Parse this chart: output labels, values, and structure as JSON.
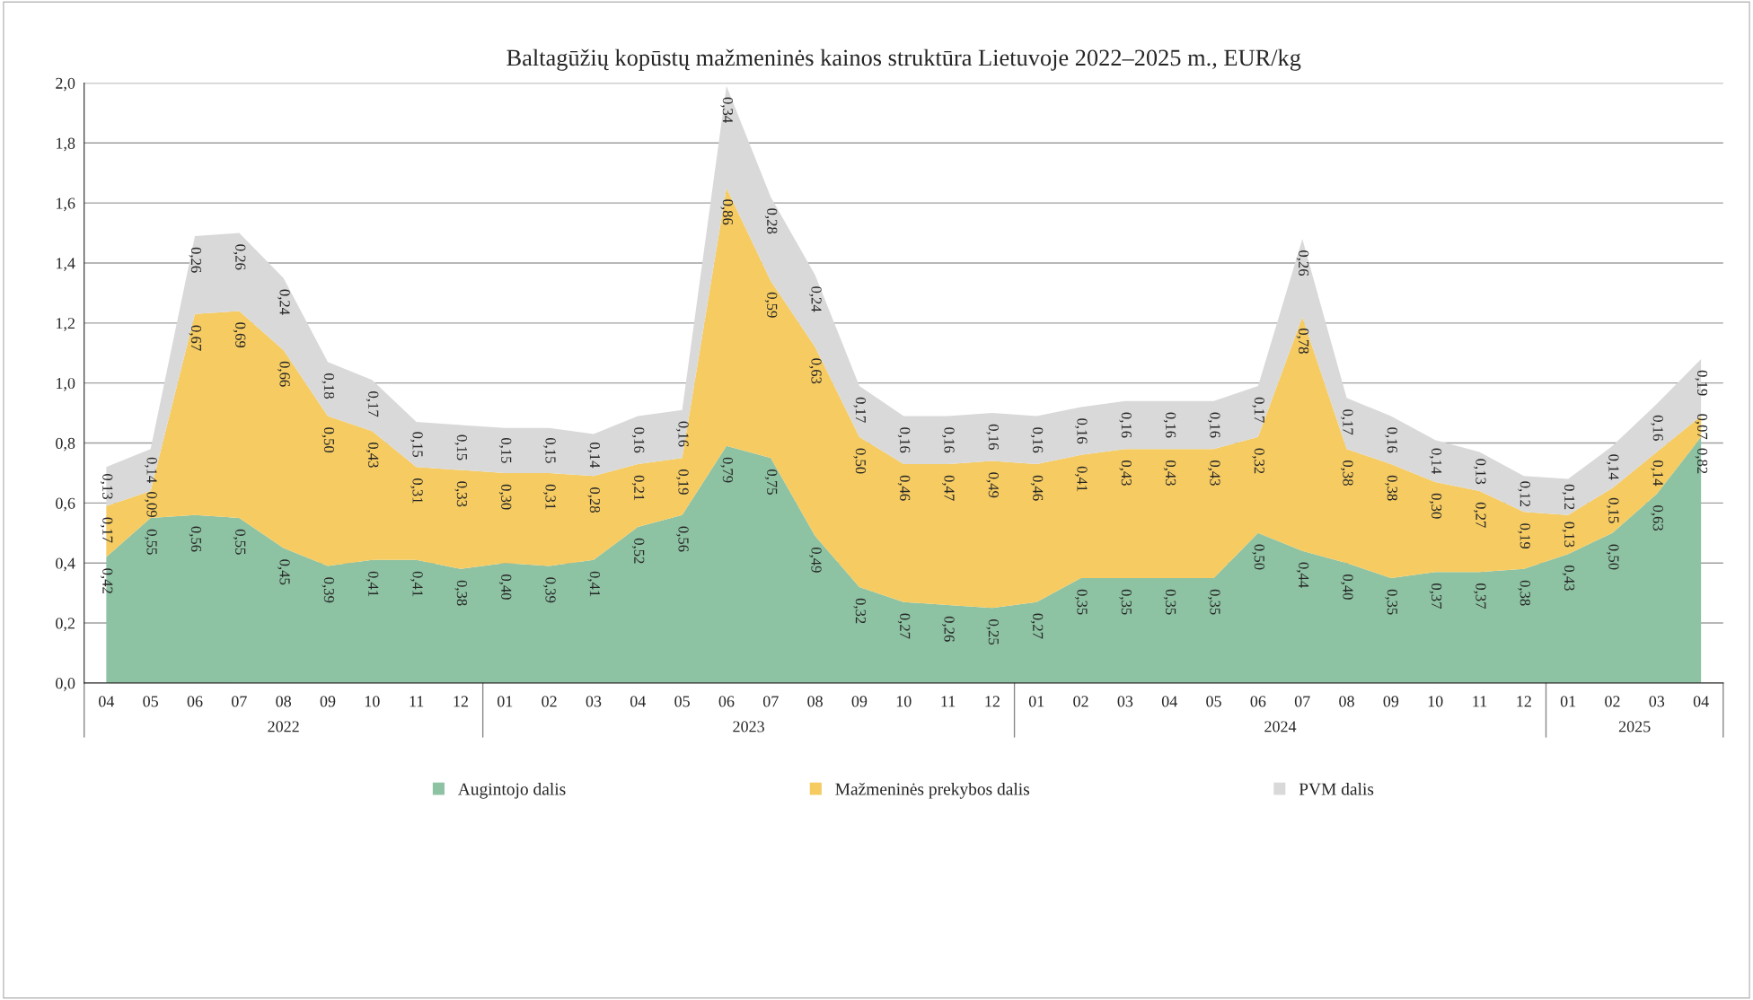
{
  "chart_data": {
    "type": "area",
    "stacked": true,
    "title": "Baltagūžių kopūstų mažmeninės kainos struktūra Lietuvoje 2022–2025 m., EUR/kg",
    "categories": [
      "04",
      "05",
      "06",
      "07",
      "08",
      "09",
      "10",
      "11",
      "12",
      "01",
      "02",
      "03",
      "04",
      "05",
      "06",
      "07",
      "08",
      "09",
      "10",
      "11",
      "12",
      "01",
      "02",
      "03",
      "04",
      "05",
      "06",
      "07",
      "08",
      "09",
      "10",
      "11",
      "12",
      "01",
      "02",
      "03",
      "04"
    ],
    "annotations": [
      "2022",
      "2023",
      "2024",
      "2025"
    ],
    "ylim": [
      0,
      2
    ],
    "yticks": [
      {
        "value": 0,
        "label": "0,0"
      },
      {
        "value": 0.2,
        "label": "0,2"
      },
      {
        "value": 0.4,
        "label": "0,4"
      },
      {
        "value": 0.6,
        "label": "0,6"
      },
      {
        "value": 0.8,
        "label": "0,8"
      },
      {
        "value": 1.0,
        "label": "1,0"
      },
      {
        "value": 1.2,
        "label": "1,2"
      },
      {
        "value": 1.4,
        "label": "1,4"
      },
      {
        "value": 1.6,
        "label": "1,6"
      },
      {
        "value": 1.8,
        "label": "1,8"
      },
      {
        "value": 2.0,
        "label": "2,0"
      }
    ],
    "grid": "y",
    "legend": "bottom",
    "series": [
      {
        "name": "Augintojo dalis",
        "color": "#8dc2a3",
        "values": [
          0.42,
          0.55,
          0.56,
          0.55,
          0.45,
          0.39,
          0.41,
          0.41,
          0.38,
          0.4,
          0.39,
          0.41,
          0.52,
          0.56,
          0.79,
          0.75,
          0.49,
          0.32,
          0.27,
          0.26,
          0.25,
          0.27,
          0.35,
          0.35,
          0.35,
          0.35,
          0.5,
          0.44,
          0.4,
          0.35,
          0.37,
          0.37,
          0.38,
          0.43,
          0.5,
          0.63,
          0.82
        ],
        "value_labels": [
          "0,42",
          "0,55",
          "0,56",
          "0,55",
          "0,45",
          "0,39",
          "0,41",
          "0,41",
          "0,38",
          "0,40",
          "0,39",
          "0,41",
          "0,52",
          "0,56",
          "0,79",
          "0,75",
          "0,49",
          "0,32",
          "0,27",
          "0,26",
          "0,25",
          "0,27",
          "0,35",
          "0,35",
          "0,35",
          "0,35",
          "0,50",
          "0,44",
          "0,40",
          "0,35",
          "0,37",
          "0,37",
          "0,38",
          "0,43",
          "0,50",
          "0,63",
          "0,82"
        ]
      },
      {
        "name": "Mažmeninės prekybos dalis",
        "color": "#f5cb62",
        "values": [
          0.17,
          0.09,
          0.67,
          0.69,
          0.66,
          0.5,
          0.43,
          0.31,
          0.33,
          0.3,
          0.31,
          0.28,
          0.21,
          0.19,
          0.86,
          0.59,
          0.63,
          0.5,
          0.46,
          0.47,
          0.49,
          0.46,
          0.41,
          0.43,
          0.43,
          0.43,
          0.32,
          0.78,
          0.38,
          0.38,
          0.3,
          0.27,
          0.19,
          0.13,
          0.15,
          0.14,
          0.07
        ],
        "value_labels": [
          "0,17",
          "0,09",
          "0,67",
          "0,69",
          "0,66",
          "0,50",
          "0,43",
          "0,31",
          "0,33",
          "0,30",
          "0,31",
          "0,28",
          "0,21",
          "0,19",
          "0,86",
          "0,59",
          "0,63",
          "0,50",
          "0,46",
          "0,47",
          "0,49",
          "0,46",
          "0,41",
          "0,43",
          "0,43",
          "0,43",
          "0,32",
          "0,78",
          "0,38",
          "0,38",
          "0,30",
          "0,27",
          "0,19",
          "0,13",
          "0,15",
          "0,14",
          "0,07"
        ]
      },
      {
        "name": "PVM dalis",
        "color": "#d9d9d9",
        "values": [
          0.13,
          0.14,
          0.26,
          0.26,
          0.24,
          0.18,
          0.17,
          0.15,
          0.15,
          0.15,
          0.15,
          0.14,
          0.16,
          0.16,
          0.34,
          0.28,
          0.24,
          0.17,
          0.16,
          0.16,
          0.16,
          0.16,
          0.16,
          0.16,
          0.16,
          0.16,
          0.17,
          0.26,
          0.17,
          0.16,
          0.14,
          0.13,
          0.12,
          0.12,
          0.14,
          0.16,
          0.19
        ],
        "value_labels": [
          "0,13",
          "0,14",
          "0,26",
          "0,26",
          "0,24",
          "0,18",
          "0,17",
          "0,15",
          "0,15",
          "0,15",
          "0,15",
          "0,14",
          "0,16",
          "0,16",
          "0,34",
          "0,28",
          "0,24",
          "0,17",
          "0,16",
          "0,16",
          "0,16",
          "0,16",
          "0,16",
          "0,16",
          "0,16",
          "0,16",
          "0,17",
          "0,26",
          "0,17",
          "0,16",
          "0,14",
          "0,13",
          "0,12",
          "0,12",
          "0,14",
          "0,16",
          "0,19"
        ]
      }
    ]
  }
}
